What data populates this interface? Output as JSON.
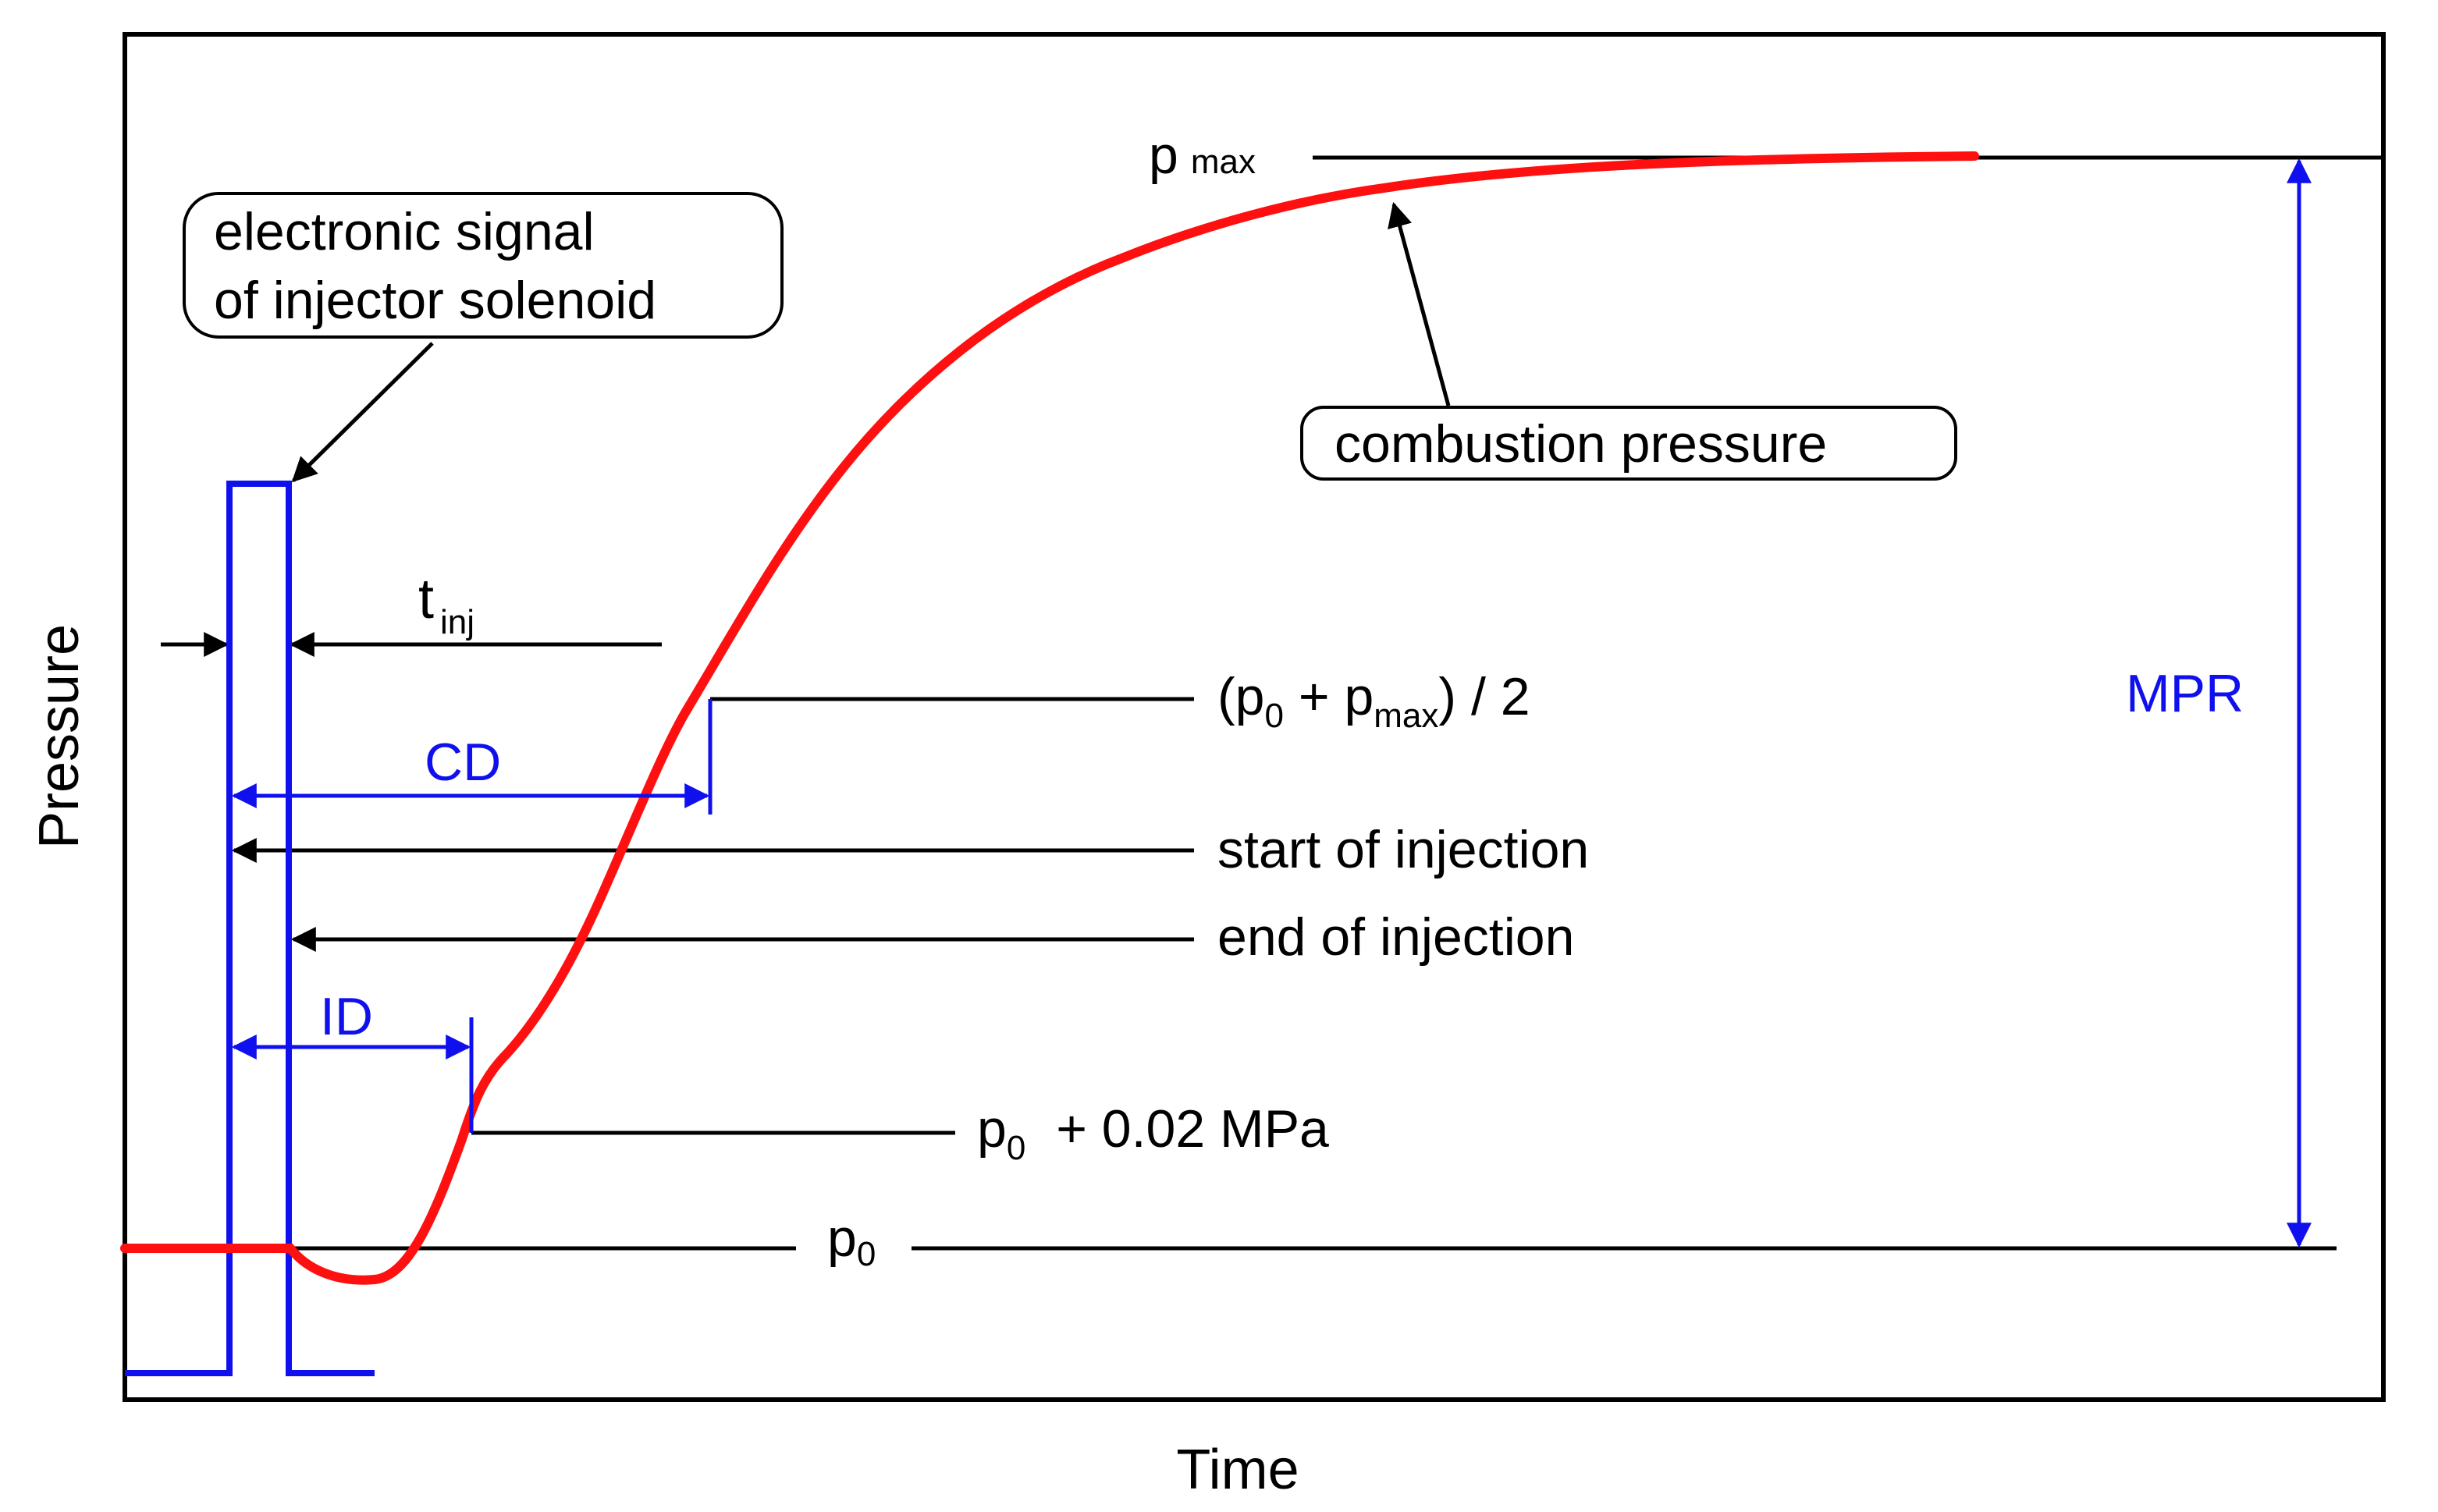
{
  "diagram": {
    "title_axes": {
      "y_label": "Pressure",
      "x_label": "Time"
    },
    "callouts": {
      "solenoid_line1": "electronic signal",
      "solenoid_line2": "of injector solenoid",
      "combustion": "combustion pressure"
    },
    "labels": {
      "pmax_main": "p",
      "pmax_sub": "max",
      "tinj_main": "t",
      "tinj_sub": "inj",
      "half_open": "(p",
      "half_sub0": "0",
      "half_plus": " + p",
      "half_submax": "max",
      "half_close": ") / 2",
      "start_injection": "start of injection",
      "end_injection": "end of injection",
      "p002_main": "p",
      "p002_sub": "0",
      "p002_rest": " + 0.02 MPa",
      "p0_main": "p",
      "p0_sub": "0"
    },
    "blue_labels": {
      "cd": "CD",
      "id": "ID",
      "mpr": "MPR"
    },
    "colors": {
      "signal": "#1010ee",
      "combustion": "#ff1010",
      "ink": "#000000"
    }
  }
}
